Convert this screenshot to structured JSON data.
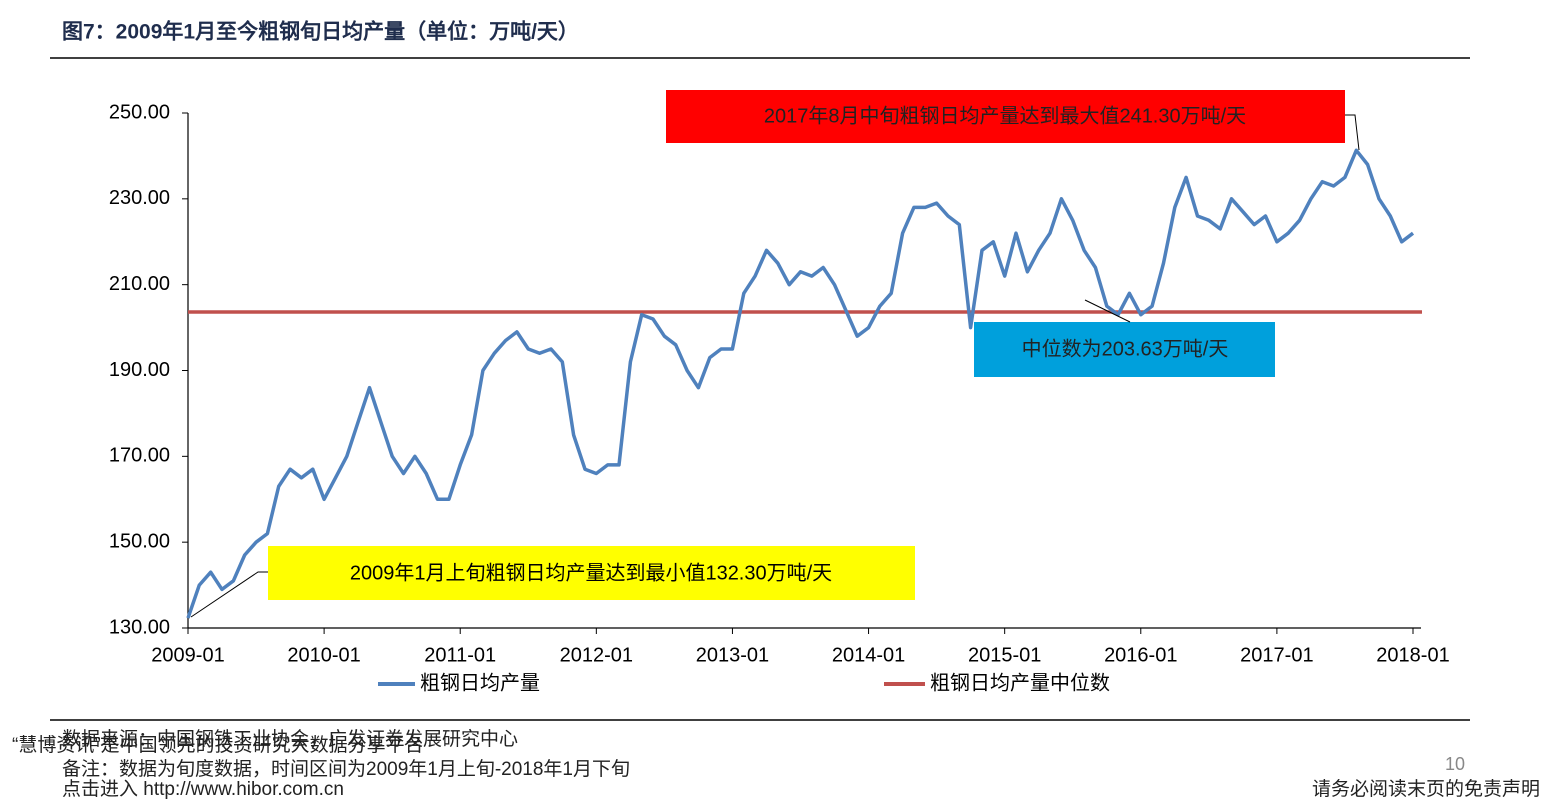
{
  "chart_data": {
    "type": "line",
    "title": "图7：2009年1月至今粗钢旬日均产量（单位：万吨/天）",
    "x": [
      "2009-01",
      "2009-02",
      "2009-03",
      "2009-04",
      "2009-05",
      "2009-06",
      "2009-07",
      "2009-08",
      "2009-09",
      "2009-10",
      "2009-11",
      "2009-12",
      "2010-01",
      "2010-02",
      "2010-03",
      "2010-04",
      "2010-05",
      "2010-06",
      "2010-07",
      "2010-08",
      "2010-09",
      "2010-10",
      "2010-11",
      "2010-12",
      "2011-01",
      "2011-02",
      "2011-03",
      "2011-04",
      "2011-05",
      "2011-06",
      "2011-07",
      "2011-08",
      "2011-09",
      "2011-10",
      "2011-11",
      "2011-12",
      "2012-01",
      "2012-02",
      "2012-03",
      "2012-04",
      "2012-05",
      "2012-06",
      "2012-07",
      "2012-08",
      "2012-09",
      "2012-10",
      "2012-11",
      "2012-12",
      "2013-01",
      "2013-02",
      "2013-03",
      "2013-04",
      "2013-05",
      "2013-06",
      "2013-07",
      "2013-08",
      "2013-09",
      "2013-10",
      "2013-11",
      "2013-12",
      "2014-01",
      "2014-02",
      "2014-03",
      "2014-04",
      "2014-05",
      "2014-06",
      "2014-07",
      "2014-08",
      "2014-09",
      "2014-10",
      "2014-11",
      "2014-12",
      "2015-01",
      "2015-02",
      "2015-03",
      "2015-04",
      "2015-05",
      "2015-06",
      "2015-07",
      "2015-08",
      "2015-09",
      "2015-10",
      "2015-11",
      "2015-12",
      "2016-01",
      "2016-02",
      "2016-03",
      "2016-04",
      "2016-05",
      "2016-06",
      "2016-07",
      "2016-08",
      "2016-09",
      "2016-10",
      "2016-11",
      "2016-12",
      "2017-01",
      "2017-02",
      "2017-03",
      "2017-04",
      "2017-05",
      "2017-06",
      "2017-07",
      "2017-08",
      "2017-09",
      "2017-10",
      "2017-11",
      "2017-12",
      "2018-01"
    ],
    "series": [
      {
        "name": "粗钢日均产量",
        "color": "#4f81bd",
        "values": [
          132.3,
          140,
          143,
          139,
          141,
          147,
          150,
          152,
          163,
          167,
          165,
          167,
          160,
          165,
          170,
          178,
          186,
          178,
          170,
          166,
          170,
          166,
          160,
          160,
          168,
          175,
          190,
          194,
          197,
          199,
          195,
          194,
          195,
          192,
          175,
          167,
          166,
          168,
          168,
          192,
          203,
          202,
          198,
          196,
          190,
          186,
          193,
          195,
          195,
          208,
          212,
          218,
          215,
          210,
          213,
          212,
          214,
          210,
          204,
          198,
          200,
          205,
          208,
          222,
          228,
          228,
          229,
          226,
          224,
          200,
          218,
          220,
          212,
          222,
          213,
          218,
          222,
          230,
          225,
          218,
          214,
          205,
          203,
          208,
          203,
          205,
          215,
          228,
          235,
          226,
          225,
          223,
          230,
          227,
          224,
          226,
          220,
          222,
          225,
          230,
          234,
          233,
          235,
          241.3,
          238,
          230,
          226,
          220,
          222
        ]
      }
    ],
    "median": {
      "name": "粗钢日均产量中位数",
      "color": "#c0504d",
      "value": 203.63
    },
    "ylim": [
      130,
      250
    ],
    "yticks": [
      {
        "value": 130,
        "label": "130.00"
      },
      {
        "value": 150,
        "label": "150.00"
      },
      {
        "value": 170,
        "label": "170.00"
      },
      {
        "value": 190,
        "label": "190.00"
      },
      {
        "value": 210,
        "label": "210.00"
      },
      {
        "value": 230,
        "label": "230.00"
      },
      {
        "value": 250,
        "label": "250.00"
      }
    ],
    "xlim": [
      "2009-01",
      "2018-01"
    ],
    "xticks": [
      "2009-01",
      "2010-01",
      "2011-01",
      "2012-01",
      "2013-01",
      "2014-01",
      "2015-01",
      "2016-01",
      "2017-01",
      "2018-01"
    ],
    "annotations": {
      "max": "2017年8月中旬粗钢日均产量达到最大值241.30万吨/天",
      "min": "2009年1月上旬粗钢日均产量达到最小值132.30万吨/天",
      "median": "中位数为203.63万吨/天"
    }
  },
  "footer": {
    "source": "数据来源：中国钢铁工业协会，广发证券发展研究中心",
    "note": "备注：数据为旬度数据，时间区间为2009年1月上旬-2018年1月下旬",
    "watermark": "“慧博资讯”是中国领先的投资研究大数据分享平台",
    "link": "点击进入 http://www.hibor.com.cn",
    "page": "10",
    "disclaimer": "请务必阅读末页的免责声明"
  }
}
